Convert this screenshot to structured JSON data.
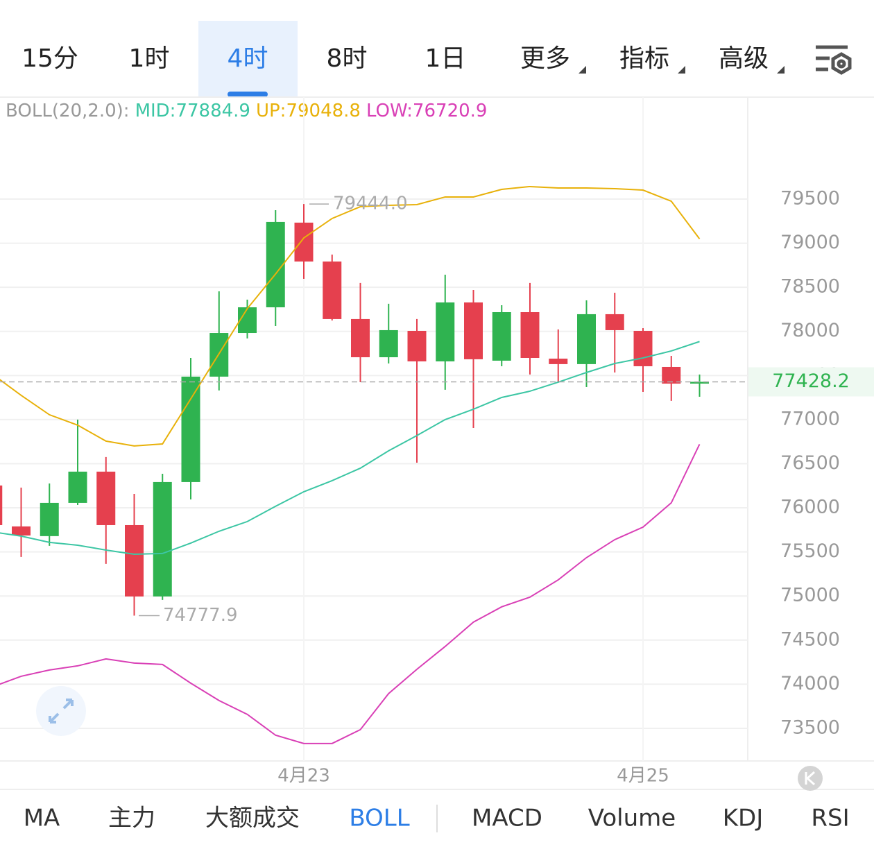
{
  "tabs": [
    "15分",
    "1时",
    "4时",
    "8时",
    "1日",
    "更多",
    "指标",
    "高级"
  ],
  "indicator_tabs": [
    "MA",
    "主力",
    "大额成交",
    "BOLL",
    "MACD",
    "Volume",
    "KDJ",
    "RSI"
  ],
  "chart_data": {
    "type": "candlestick",
    "indicator_label": "BOLL(20,2.0):",
    "categories": [
      null,
      null,
      null,
      null,
      null,
      null,
      null,
      null,
      null,
      null,
      null,
      "4月23",
      null,
      null,
      null,
      null,
      null,
      null,
      null,
      null,
      null,
      null,
      null,
      "4月25",
      null,
      null
    ],
    "open": [
      76253,
      75789,
      75679,
      76056,
      76410,
      75804,
      74995,
      76292,
      77487,
      77982,
      78273,
      79233,
      78792,
      78140,
      77707,
      78006,
      77660,
      78328,
      77668,
      78218,
      77691,
      77629,
      78195,
      78006,
      77597,
      77408
    ],
    "high": [
      76253,
      76229,
      76276,
      77000,
      76575,
      76158,
      76386,
      77699,
      78454,
      78360,
      79374,
      79444,
      78871,
      78549,
      78313,
      78140,
      78643,
      78470,
      78297,
      78549,
      78022,
      78352,
      78438,
      78037,
      77723,
      77511
    ],
    "low": [
      75804,
      75443,
      75569,
      76032,
      75364,
      74777.9,
      74955,
      76095,
      77330,
      77920,
      78061,
      78596,
      78124,
      77424,
      77636,
      76512,
      77338,
      76905,
      77605,
      77511,
      77424,
      77369,
      77534,
      77314,
      77212,
      77259
    ],
    "close": [
      75804,
      75686,
      76056,
      76410,
      75804,
      74995,
      76292,
      77487,
      77982,
      78273,
      79241,
      78792,
      78140,
      77707,
      78014,
      77660,
      78328,
      77684,
      78218,
      77699,
      77629,
      78195,
      78014,
      77605,
      77408,
      77428.2
    ],
    "up_color": "#2fb350",
    "down_color": "#e5404e",
    "series": [
      {
        "name": "MID:77884.9",
        "color": "#3cc6a4",
        "values": [
          75726,
          75679,
          75608,
          75576,
          75521,
          75474,
          75482,
          75600,
          75734,
          75844,
          76017,
          76182,
          76308,
          76449,
          76646,
          76819,
          77000,
          77118,
          77251,
          77322,
          77424,
          77534,
          77636,
          77699,
          77778,
          77884.9
        ]
      },
      {
        "name": "UP:79048.8",
        "color": "#e8b10a",
        "values": [
          77511,
          77275,
          77055,
          76937,
          76756,
          76701,
          76724,
          77235,
          77747,
          78258,
          78651,
          79060,
          79280,
          79414,
          79429,
          79437,
          79524,
          79524,
          79610,
          79642,
          79626,
          79626,
          79618,
          79602,
          79476,
          79048.8
        ]
      },
      {
        "name": "LOW:76720.9",
        "color": "#d940b6",
        "values": [
          73972,
          74090,
          74161,
          74208,
          74287,
          74240,
          74224,
          74012,
          73815,
          73658,
          73422,
          73328,
          73328,
          73485,
          73894,
          74169,
          74428,
          74704,
          74877,
          74987,
          75183,
          75435,
          75639,
          75781,
          76056,
          76720.9
        ]
      }
    ],
    "max_label": {
      "value": 79444.0,
      "label": "79444.0"
    },
    "min_label": 74777.9,
    "last_price": 77428.2,
    "ylim": [
      73130,
      80656
    ],
    "yticks": [
      73500,
      74000,
      74500,
      75000,
      75500,
      76000,
      76500,
      77000,
      77500,
      78000,
      78500,
      79000,
      79500
    ],
    "grid": true
  }
}
